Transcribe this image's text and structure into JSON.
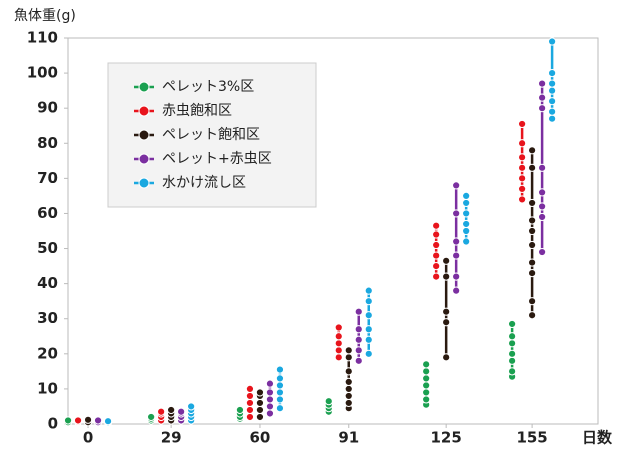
{
  "chart_data": {
    "type": "scatter",
    "y_label": "魚体重(g)",
    "x_label": "日数",
    "x": [
      0,
      29,
      60,
      91,
      125,
      155
    ],
    "xlim": [
      -7,
      178
    ],
    "xticks": [
      0,
      29,
      60,
      91,
      125,
      155
    ],
    "ylim": [
      0,
      110
    ],
    "yticks": [
      0,
      10,
      20,
      30,
      40,
      50,
      60,
      70,
      80,
      90,
      100,
      110
    ],
    "series": [
      {
        "name": "ペレット3%区",
        "color": "#1aa050",
        "values": [
          [
            0.5,
            1
          ],
          [
            1,
            1.5,
            2
          ],
          [
            1.5,
            2,
            3,
            4
          ],
          [
            3.5,
            4.5,
            5.5,
            6.5
          ],
          [
            5.5,
            7,
            9,
            11,
            13,
            15,
            17
          ],
          [
            13.5,
            15,
            18,
            20,
            23,
            25,
            28.5
          ]
        ]
      },
      {
        "name": "赤虫飽和区",
        "color": "#e8141c",
        "values": [
          [
            0.7,
            1
          ],
          [
            1,
            2,
            3,
            3.5
          ],
          [
            2,
            4,
            6,
            8,
            10
          ],
          [
            19,
            21,
            23,
            25,
            27.5
          ],
          [
            42,
            45,
            48,
            51,
            54,
            56.5
          ],
          [
            64,
            67,
            70,
            73,
            76,
            80,
            85.5
          ]
        ]
      },
      {
        "name": "ペレット飽和区",
        "color": "#2a1a10",
        "values": [
          [
            0.5,
            1.2
          ],
          [
            1,
            2,
            3,
            4
          ],
          [
            2,
            4,
            6,
            8,
            9
          ],
          [
            4.5,
            6,
            8,
            10,
            12,
            15,
            19,
            21
          ],
          [
            19,
            29,
            32,
            42,
            46.5
          ],
          [
            31,
            35,
            43,
            46,
            51,
            55,
            58,
            63,
            73,
            78
          ]
        ]
      },
      {
        "name": "ペレット+赤虫区",
        "color": "#7b2fa0",
        "values": [
          [
            0.5,
            1
          ],
          [
            1,
            2,
            3,
            3.5
          ],
          [
            3,
            5,
            7,
            9,
            11.5
          ],
          [
            18,
            21,
            24,
            27,
            32
          ],
          [
            38,
            42,
            48,
            52,
            60,
            68
          ],
          [
            49,
            59,
            62,
            66,
            73,
            90,
            93,
            97
          ]
        ]
      },
      {
        "name": "水かけ流し区",
        "color": "#1aa8e0",
        "values": [
          [
            0.5,
            0.8
          ],
          [
            1,
            2,
            3,
            4,
            5
          ],
          [
            4.5,
            7,
            9,
            11,
            13,
            15.5
          ],
          [
            20,
            24,
            27,
            31,
            35,
            38
          ],
          [
            52,
            55,
            57,
            60,
            63,
            65
          ],
          [
            87,
            89,
            92,
            95,
            97,
            100,
            109
          ]
        ]
      }
    ]
  }
}
